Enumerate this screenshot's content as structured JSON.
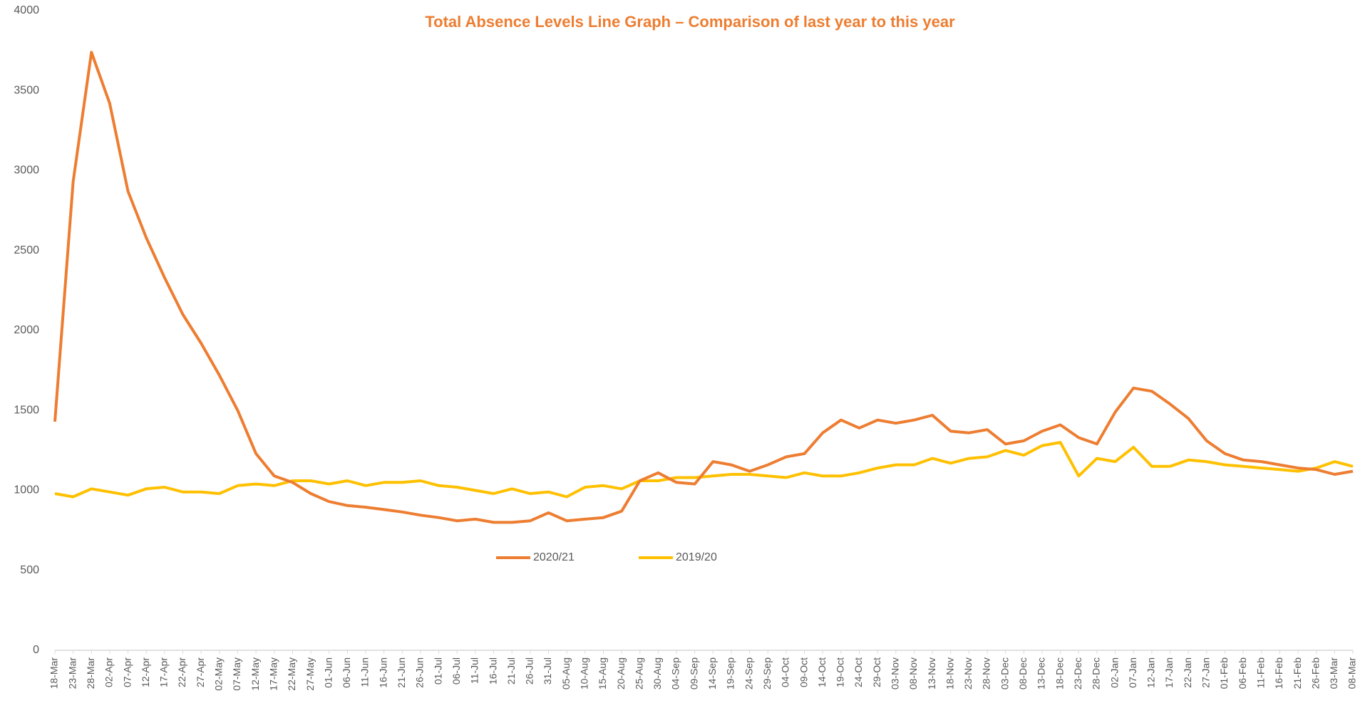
{
  "chart_data": {
    "type": "line",
    "title": "Total Absence Levels Line Graph – Comparison of last year to this year",
    "categories": [
      "18-Mar",
      "23-Mar",
      "28-Mar",
      "02-Apr",
      "07-Apr",
      "12-Apr",
      "17-Apr",
      "22-Apr",
      "27-Apr",
      "02-May",
      "07-May",
      "12-May",
      "17-May",
      "22-May",
      "27-May",
      "01-Jun",
      "06-Jun",
      "11-Jun",
      "16-Jun",
      "21-Jun",
      "26-Jun",
      "01-Jul",
      "06-Jul",
      "11-Jul",
      "16-Jul",
      "21-Jul",
      "26-Jul",
      "31-Jul",
      "05-Aug",
      "10-Aug",
      "15-Aug",
      "20-Aug",
      "25-Aug",
      "30-Aug",
      "04-Sep",
      "09-Sep",
      "14-Sep",
      "19-Sep",
      "24-Sep",
      "29-Sep",
      "04-Oct",
      "09-Oct",
      "14-Oct",
      "19-Oct",
      "24-Oct",
      "29-Oct",
      "03-Nov",
      "08-Nov",
      "13-Nov",
      "18-Nov",
      "23-Nov",
      "28-Nov",
      "03-Dec",
      "08-Dec",
      "13-Dec",
      "18-Dec",
      "23-Dec",
      "28-Dec",
      "02-Jan",
      "07-Jan",
      "12-Jan",
      "17-Jan",
      "22-Jan",
      "27-Jan",
      "01-Feb",
      "06-Feb",
      "11-Feb",
      "16-Feb",
      "21-Feb",
      "26-Feb",
      "03-Mar",
      "08-Mar"
    ],
    "series": [
      {
        "name": "2020/21",
        "color": "#ed7d31",
        "values": [
          1430,
          2930,
          3740,
          3420,
          2870,
          2580,
          2330,
          2100,
          1920,
          1720,
          1500,
          1230,
          1090,
          1050,
          980,
          930,
          905,
          895,
          880,
          865,
          845,
          830,
          810,
          820,
          800,
          800,
          810,
          860,
          810,
          820,
          830,
          870,
          1060,
          1110,
          1050,
          1040,
          1180,
          1160,
          1120,
          1160,
          1210,
          1230,
          1360,
          1440,
          1390,
          1440,
          1420,
          1440,
          1470,
          1370,
          1360,
          1380,
          1290,
          1310,
          1370,
          1410,
          1330,
          1290,
          1490,
          1640,
          1620,
          1540,
          1450,
          1310,
          1230,
          1190,
          1180,
          1160,
          1140,
          1130,
          1100,
          1120
        ]
      },
      {
        "name": "2019/20",
        "color": "#ffc000",
        "values": [
          980,
          960,
          1010,
          990,
          970,
          1010,
          1020,
          990,
          990,
          980,
          1030,
          1040,
          1030,
          1060,
          1060,
          1040,
          1060,
          1030,
          1050,
          1050,
          1060,
          1030,
          1020,
          1000,
          980,
          1010,
          980,
          990,
          960,
          1020,
          1030,
          1010,
          1060,
          1060,
          1080,
          1080,
          1090,
          1100,
          1100,
          1090,
          1080,
          1110,
          1090,
          1090,
          1110,
          1140,
          1160,
          1160,
          1200,
          1170,
          1200,
          1210,
          1250,
          1220,
          1280,
          1300,
          1090,
          1200,
          1180,
          1270,
          1150,
          1150,
          1190,
          1180,
          1160,
          1150,
          1140,
          1130,
          1120,
          1140,
          1180,
          1150
        ]
      }
    ],
    "ylim": [
      0,
      4000
    ],
    "yticks": [
      0,
      500,
      1000,
      1500,
      2000,
      2500,
      3000,
      3500,
      4000
    ],
    "grid": false
  }
}
